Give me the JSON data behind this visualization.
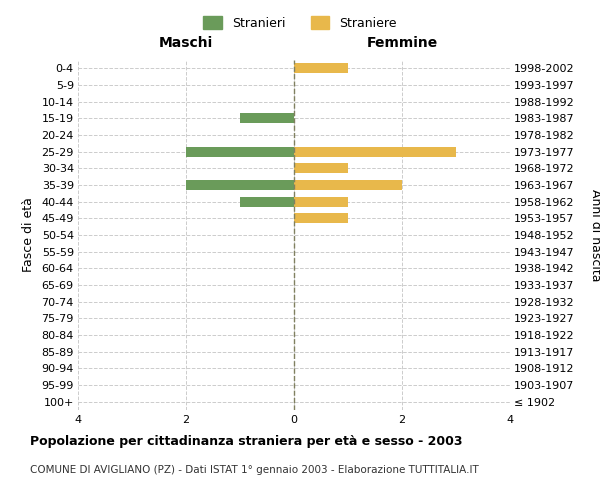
{
  "age_groups": [
    "100+",
    "95-99",
    "90-94",
    "85-89",
    "80-84",
    "75-79",
    "70-74",
    "65-69",
    "60-64",
    "55-59",
    "50-54",
    "45-49",
    "40-44",
    "35-39",
    "30-34",
    "25-29",
    "20-24",
    "15-19",
    "10-14",
    "5-9",
    "0-4"
  ],
  "birth_years": [
    "≤ 1902",
    "1903-1907",
    "1908-1912",
    "1913-1917",
    "1918-1922",
    "1923-1927",
    "1928-1932",
    "1933-1937",
    "1938-1942",
    "1943-1947",
    "1948-1952",
    "1953-1957",
    "1958-1962",
    "1963-1967",
    "1968-1972",
    "1973-1977",
    "1978-1982",
    "1983-1987",
    "1988-1992",
    "1993-1997",
    "1998-2002"
  ],
  "males": [
    0,
    0,
    0,
    0,
    0,
    0,
    0,
    0,
    0,
    0,
    0,
    0,
    1,
    2,
    0,
    2,
    0,
    1,
    0,
    0,
    0
  ],
  "females": [
    0,
    0,
    0,
    0,
    0,
    0,
    0,
    0,
    0,
    0,
    0,
    1,
    1,
    2,
    1,
    3,
    0,
    0,
    0,
    0,
    1
  ],
  "male_color": "#6A9B5A",
  "female_color": "#E8B84B",
  "xlim": 4,
  "title": "Popolazione per cittadinanza straniera per età e sesso - 2003",
  "subtitle": "COMUNE DI AVIGLIANO (PZ) - Dati ISTAT 1° gennaio 2003 - Elaborazione TUTTITALIA.IT",
  "ylabel_left": "Fasce di età",
  "ylabel_right": "Anni di nascita",
  "header_left": "Maschi",
  "header_right": "Femmine",
  "legend_male": "Stranieri",
  "legend_female": "Straniere",
  "bg_color": "#ffffff",
  "grid_color": "#cccccc",
  "center_line_color": "#808060"
}
